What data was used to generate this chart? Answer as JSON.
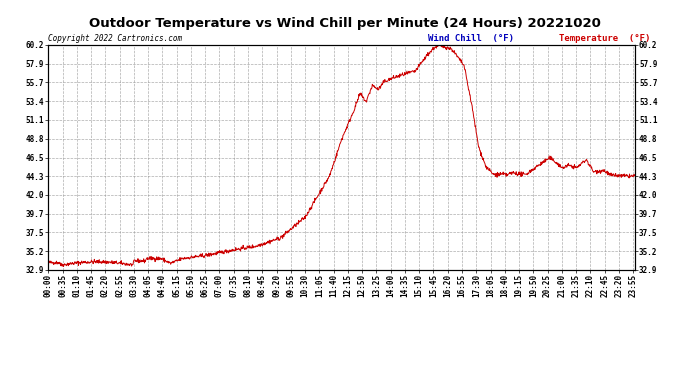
{
  "title": "Outdoor Temperature vs Wind Chill per Minute (24 Hours) 20221020",
  "copyright_text": "Copyright 2022 Cartronics.com",
  "legend_wind_chill": "Wind Chill  (°F)",
  "legend_temperature": "Temperature  (°F)",
  "line_color": "#cc0000",
  "wind_chill_color": "#0000bb",
  "temperature_color": "#cc0000",
  "background_color": "#ffffff",
  "grid_color": "#999999",
  "ylim": [
    32.9,
    60.2
  ],
  "yticks": [
    32.9,
    35.2,
    37.5,
    39.7,
    42.0,
    44.3,
    46.5,
    48.8,
    51.1,
    53.4,
    55.7,
    57.9,
    60.2
  ],
  "title_fontsize": 9.5,
  "tick_fontsize": 5.5,
  "figsize": [
    6.9,
    3.75
  ],
  "dpi": 100
}
